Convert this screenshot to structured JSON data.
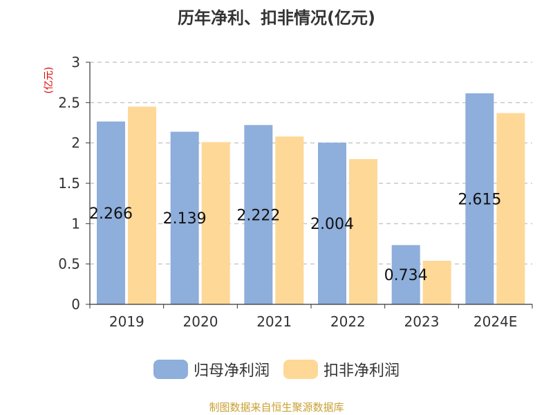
{
  "chart_data": {
    "type": "bar",
    "title": "历年净利、扣非情况(亿元)",
    "ylabel": "(亿元)",
    "xlabel": "",
    "categories": [
      "2019",
      "2020",
      "2021",
      "2022",
      "2023",
      "2024E"
    ],
    "series": [
      {
        "name": "归母净利润",
        "color": "#8eaedb",
        "values": [
          2.266,
          2.139,
          2.222,
          2.004,
          0.734,
          2.615
        ],
        "labels": [
          "2.266",
          "2.139",
          "2.222",
          "2.004",
          "0.734",
          "2.615"
        ]
      },
      {
        "name": "扣非净利润",
        "color": "#fed897",
        "values": [
          2.45,
          2.01,
          2.08,
          1.8,
          0.54,
          2.37
        ]
      }
    ],
    "ylim": [
      0,
      3
    ],
    "yticks": [
      0,
      0.5,
      1,
      1.5,
      2,
      2.5,
      3
    ],
    "ytick_labels": [
      "0",
      "0.5",
      "1",
      "1.5",
      "2",
      "2.5",
      "3"
    ],
    "grid": true,
    "legend_position": "bottom"
  },
  "source": {
    "text": "制图数据来自恒生聚源数据库",
    "color": "#c8a032"
  }
}
